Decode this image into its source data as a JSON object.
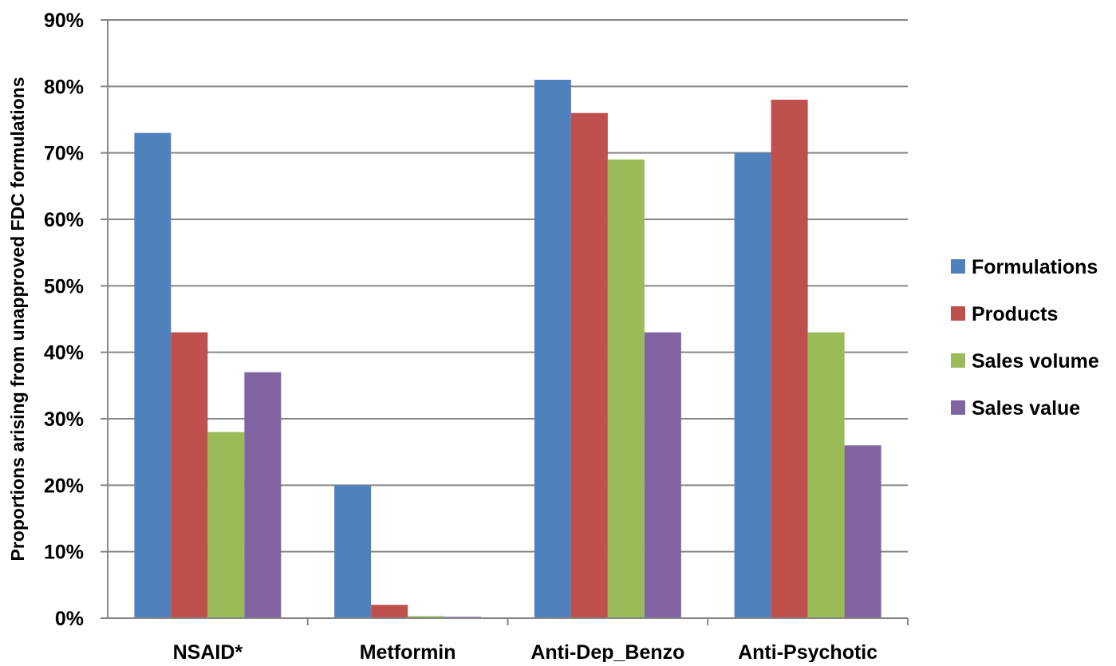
{
  "chart_data": {
    "type": "bar",
    "title": "",
    "xlabel": "",
    "ylabel": "Proportions arising from unapproved FDC formulations",
    "categories": [
      "NSAID*",
      "Metformin",
      "Anti-Dep_Benzo",
      "Anti-Psychotic"
    ],
    "series": [
      {
        "name": "Formulations",
        "color": "#4F81BD",
        "values": [
          73,
          20,
          81,
          70
        ]
      },
      {
        "name": "Products",
        "color": "#C0504D",
        "values": [
          43,
          2,
          76,
          78
        ]
      },
      {
        "name": "Sales volume",
        "color": "#9BBB59",
        "values": [
          28,
          0.3,
          69,
          43
        ]
      },
      {
        "name": "Sales value",
        "color": "#8064A2",
        "values": [
          37,
          0.2,
          43,
          26
        ]
      }
    ],
    "ylim": [
      0,
      90
    ],
    "yticks": [
      "0%",
      "10%",
      "20%",
      "30%",
      "40%",
      "50%",
      "60%",
      "70%",
      "80%",
      "90%"
    ],
    "grid": true,
    "legend_position": "right"
  }
}
